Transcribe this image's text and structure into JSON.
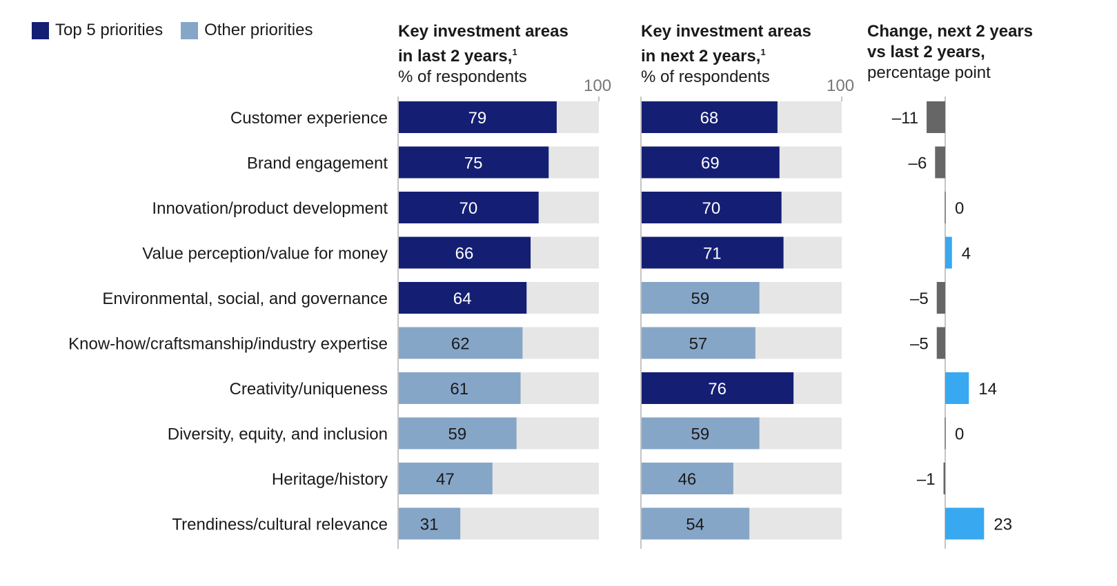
{
  "legend": [
    {
      "label": "Top 5 priorities",
      "color": "#141f73"
    },
    {
      "label": "Other priorities",
      "color": "#86a6c8"
    }
  ],
  "panels": {
    "last": {
      "title_line1": "Key investment areas",
      "title_line2": "in last 2 years,",
      "footnote": "1",
      "subtitle": "% of respondents",
      "max_label": "100"
    },
    "next": {
      "title_line1": "Key investment areas",
      "title_line2": "in next 2 years,",
      "footnote": "1",
      "subtitle": "% of respondents",
      "max_label": "100"
    },
    "change": {
      "title_line1": "Change, next 2 years",
      "title_line2": "vs last 2 years,",
      "subtitle": "percentage point"
    }
  },
  "colors": {
    "top5": "#141f73",
    "other": "#86a6c8",
    "track": "#e6e6e6",
    "negative": "#666666",
    "positive": "#38a8f0",
    "axis": "#888888"
  },
  "chart_data": {
    "type": "bar",
    "orientation": "horizontal",
    "categories": [
      "Customer experience",
      "Brand engagement",
      "Innovation/product development",
      "Value perception/value for money",
      "Environmental, social, and governance",
      "Know-how/craftsmanship/industry expertise",
      "Creativity/uniqueness",
      "Diversity, equity, and inclusion",
      "Heritage/history",
      "Trendiness/cultural relevance"
    ],
    "series": [
      {
        "name": "Key investment areas in last 2 years (% of respondents)",
        "values": [
          79,
          75,
          70,
          66,
          64,
          62,
          61,
          59,
          47,
          31
        ],
        "top5": [
          true,
          true,
          true,
          true,
          true,
          false,
          false,
          false,
          false,
          false
        ],
        "xlim": [
          0,
          100
        ]
      },
      {
        "name": "Key investment areas in next 2 years (% of respondents)",
        "values": [
          68,
          69,
          70,
          71,
          59,
          57,
          76,
          59,
          46,
          54
        ],
        "top5": [
          true,
          true,
          true,
          true,
          false,
          false,
          true,
          false,
          false,
          false
        ],
        "xlim": [
          0,
          100
        ]
      },
      {
        "name": "Change, next 2 years vs last 2 years (percentage point)",
        "values": [
          -11,
          -6,
          0,
          4,
          -5,
          -5,
          14,
          0,
          -1,
          23
        ],
        "labels": [
          "–11",
          "–6",
          "0",
          "4",
          "–5",
          "–5",
          "14",
          "0",
          "–1",
          "23"
        ]
      }
    ],
    "legend": [
      "Top 5 priorities",
      "Other priorities"
    ],
    "legend_position": "top-left",
    "grid": false
  }
}
